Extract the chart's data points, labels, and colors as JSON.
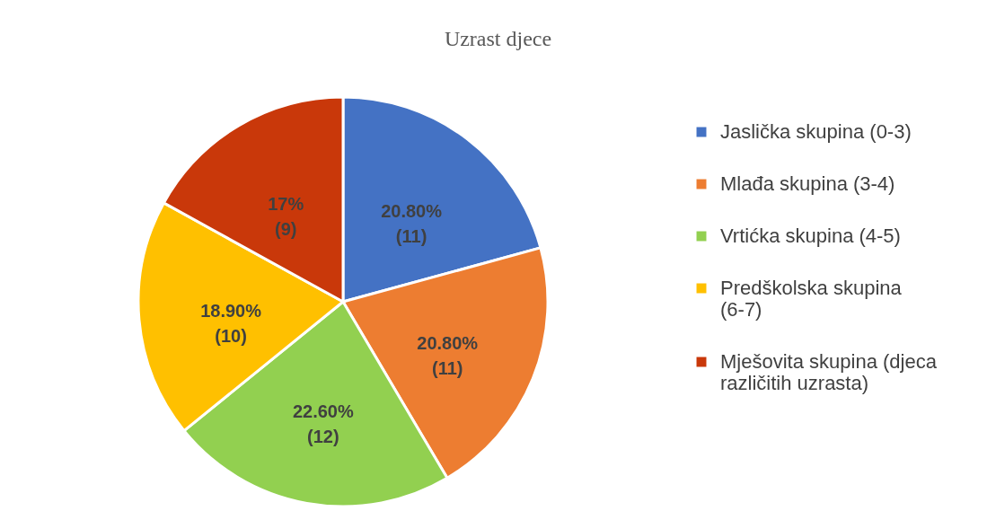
{
  "chart_data": {
    "type": "pie",
    "title": "Uzrast djece",
    "categories": [
      "Jaslička skupina (0-3)",
      "Mlađa skupina (3-4)",
      "Vrtićka skupina (4-5)",
      "Predškolska skupina (6-7)",
      "Mješovita skupina (djeca različitih uzrasta)"
    ],
    "values": [
      11,
      11,
      12,
      10,
      9
    ],
    "colors": [
      "#4472c4",
      "#ed7d31",
      "#92d050",
      "#ffc000",
      "#c9380a"
    ],
    "value_labels": [
      "20.80% (11)",
      "20.80% (11)",
      "22.60% (12)",
      "18.90% (10)",
      "17% (9)"
    ],
    "legend": "right"
  }
}
